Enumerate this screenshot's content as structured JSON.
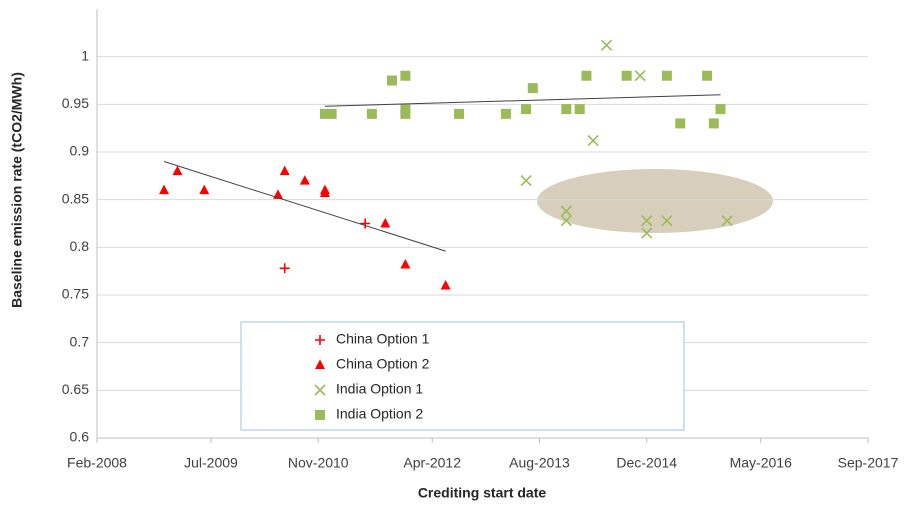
{
  "chart_data": {
    "type": "scatter",
    "x_label": "Crediting start date",
    "y_label": "Baseline emission rate (tCO2/MWh)",
    "xlim": [
      "2008-02",
      "2017-09"
    ],
    "xticks": [
      {
        "value": "2008-02",
        "label": "Feb-2008"
      },
      {
        "value": "2009-07",
        "label": "Jul-2009"
      },
      {
        "value": "2010-11",
        "label": "Nov-2010"
      },
      {
        "value": "2012-04",
        "label": "Apr-2012"
      },
      {
        "value": "2013-08",
        "label": "Aug-2013"
      },
      {
        "value": "2014-12",
        "label": "Dec-2014"
      },
      {
        "value": "2016-05",
        "label": "May-2016"
      },
      {
        "value": "2017-09",
        "label": "Sep-2017"
      }
    ],
    "ylim": [
      0.6,
      1.05
    ],
    "yticks": [
      0.6,
      0.65,
      0.7,
      0.75,
      0.8,
      0.85,
      0.9,
      0.95,
      1
    ],
    "grid": true,
    "series": [
      {
        "name": "China Option 1",
        "color": "#ff0000",
        "marker": "plus",
        "x": [
          "2010-06",
          "2011-06"
        ],
        "values": [
          0.778,
          0.825
        ]
      },
      {
        "name": "China Option 2",
        "color": "#ff0000",
        "marker": "triangle",
        "x": [
          "2008-12",
          "2009-02",
          "2009-06",
          "2010-05",
          "2010-06",
          "2010-09",
          "2010-12",
          "2010-12",
          "2011-09",
          "2011-12",
          "2012-06"
        ],
        "values": [
          0.86,
          0.88,
          0.86,
          0.855,
          0.88,
          0.87,
          0.86,
          0.857,
          0.825,
          0.782,
          0.76
        ]
      },
      {
        "name": "India Option 1",
        "color": "#9bbb59",
        "marker": "x",
        "x": [
          "2013-06",
          "2013-12",
          "2013-12",
          "2014-04",
          "2014-06",
          "2014-11",
          "2014-12",
          "2014-12",
          "2015-03",
          "2015-12"
        ],
        "values": [
          0.87,
          0.838,
          0.828,
          0.912,
          1.012,
          0.98,
          0.828,
          0.815,
          0.828,
          0.828
        ]
      },
      {
        "name": "India Option 2",
        "color": "#9bbb59",
        "marker": "square",
        "x": [
          "2010-12",
          "2011-01",
          "2011-07",
          "2011-10",
          "2011-12",
          "2011-12",
          "2011-12",
          "2012-08",
          "2013-03",
          "2013-06",
          "2013-07",
          "2013-12",
          "2014-02",
          "2014-03",
          "2014-09",
          "2015-03",
          "2015-05",
          "2015-09",
          "2015-10",
          "2015-11"
        ],
        "values": [
          0.94,
          0.94,
          0.94,
          0.975,
          0.98,
          0.945,
          0.94,
          0.94,
          0.94,
          0.945,
          0.967,
          0.945,
          0.945,
          0.98,
          0.98,
          0.98,
          0.93,
          0.98,
          0.93,
          0.945
        ]
      }
    ],
    "trendlines": [
      {
        "color": "#404040",
        "x": [
          "2008-12",
          "2012-06"
        ],
        "values": [
          0.89,
          0.796
        ]
      },
      {
        "color": "#404040",
        "x": [
          "2010-12",
          "2015-11"
        ],
        "values": [
          0.948,
          0.96
        ]
      }
    ],
    "legend": "bottom-center"
  }
}
